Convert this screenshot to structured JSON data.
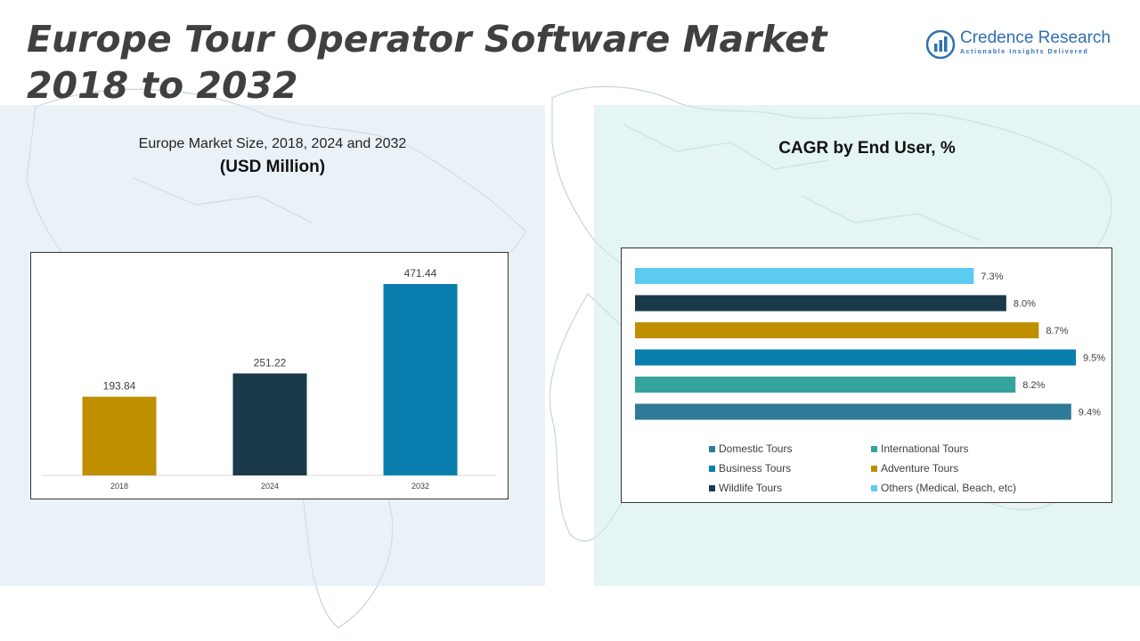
{
  "title": "Europe Tour Operator Software Market 2018 to 2032",
  "logo": {
    "name": "Credence Research",
    "tagline": "Actionable Insights Delivered"
  },
  "left_panel": {
    "subtitle": "Europe Market Size, 2018, 2024 and 2032",
    "unit": "(USD Million)"
  },
  "right_panel": {
    "subtitle": "CAGR by End User, %"
  },
  "colors": {
    "gold": "#BF8F00",
    "navy": "#1A3A4A",
    "blue": "#0A7EAE",
    "teal": "#34A39E",
    "steel": "#2F7A99",
    "sky": "#5BCBF2"
  },
  "chart_data": [
    {
      "type": "bar",
      "title": "Europe Market Size, 2018, 2024 and 2032",
      "ylabel": "(USD Million)",
      "categories": [
        "2018",
        "2024",
        "2032"
      ],
      "values": [
        193.84,
        251.22,
        471.44
      ],
      "value_labels": [
        "193.84",
        "251.22",
        "471.44"
      ],
      "colors": [
        "#BF8F00",
        "#1A3A4A",
        "#0A7EAE"
      ],
      "ylim": [
        0,
        500
      ],
      "grid": false
    },
    {
      "type": "bar",
      "orientation": "horizontal",
      "title": "CAGR by End User, %",
      "categories": [
        "Others (Medical, Beach, etc)",
        "Wildlife Tours",
        "Adventure Tours",
        "Business Tours",
        "International Tours",
        "Domestic Tours"
      ],
      "values": [
        7.3,
        8.0,
        8.7,
        9.5,
        8.2,
        9.4
      ],
      "value_labels": [
        "7.3%",
        "8.0%",
        "8.7%",
        "9.5%",
        "8.2%",
        "9.4%"
      ],
      "colors": [
        "#5BCBF2",
        "#1A3A4A",
        "#BF8F00",
        "#0A7EAE",
        "#34A39E",
        "#2F7A99"
      ],
      "xlim": [
        0,
        9.5
      ],
      "grid": false,
      "legend": {
        "placement": "bottom",
        "items": [
          {
            "label": "Domestic Tours",
            "color": "#2F7A99"
          },
          {
            "label": "International Tours",
            "color": "#34A39E"
          },
          {
            "label": "Business Tours",
            "color": "#0A7EAE"
          },
          {
            "label": "Adventure Tours",
            "color": "#BF8F00"
          },
          {
            "label": "Wildlife Tours",
            "color": "#1A3A4A"
          },
          {
            "label": "Others (Medical, Beach, etc)",
            "color": "#5BCBF2"
          }
        ]
      }
    }
  ]
}
